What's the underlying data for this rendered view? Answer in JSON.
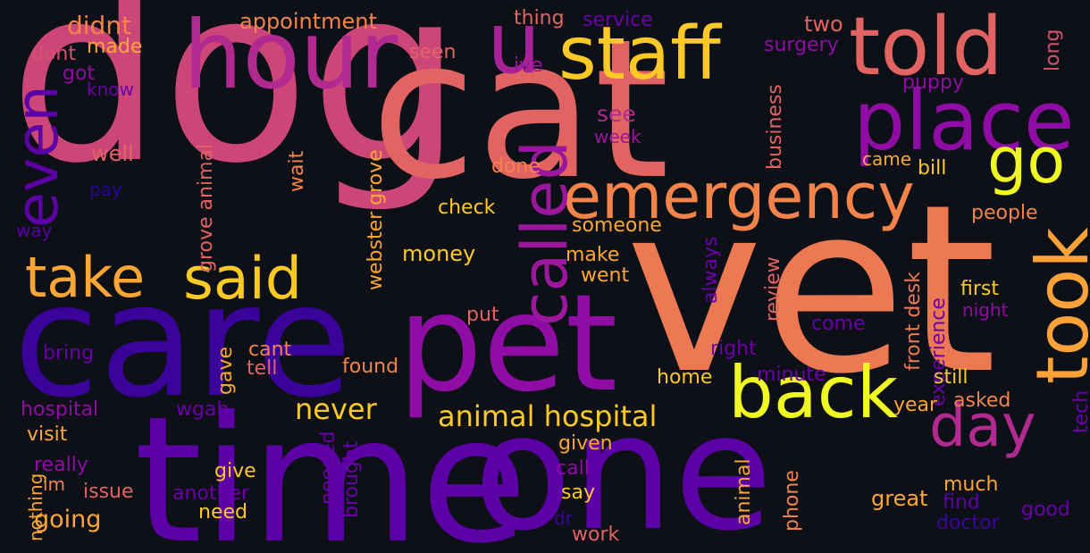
{
  "background": "#0d1117",
  "colormap": "plasma",
  "words": [
    {
      "text": "dog",
      "color": "#cc4778"
    },
    {
      "text": "vet",
      "color": "#ed7953"
    },
    {
      "text": "cat",
      "color": "#e16462"
    },
    {
      "text": "care",
      "color": "#3a049a"
    },
    {
      "text": "time",
      "color": "#5c01a6"
    },
    {
      "text": "one",
      "color": "#5c01a6"
    },
    {
      "text": "pet",
      "color": "#8f0da4"
    },
    {
      "text": "hour",
      "color": "#b12a90"
    },
    {
      "text": "u",
      "color": "#a72197"
    },
    {
      "text": "staff",
      "color": "#fdc926"
    },
    {
      "text": "told",
      "color": "#e16462"
    },
    {
      "text": "place",
      "color": "#8f0da4"
    },
    {
      "text": "go",
      "color": "#f0f921"
    },
    {
      "text": "emergency",
      "color": "#f2844b"
    },
    {
      "text": "called",
      "color": "#9c179e"
    },
    {
      "text": "took",
      "color": "#fba238"
    },
    {
      "text": "back",
      "color": "#f0f921"
    },
    {
      "text": "day",
      "color": "#b12a90"
    },
    {
      "text": "even",
      "color": "#5c01a6"
    },
    {
      "text": "take",
      "color": "#fca636"
    },
    {
      "text": "said",
      "color": "#fdc926"
    },
    {
      "text": "animal hospital",
      "color": "#fdc926"
    },
    {
      "text": "never",
      "color": "#fdc926"
    },
    {
      "text": "didnt",
      "color": "#f2844b"
    },
    {
      "text": "appointment",
      "color": "#f2844b"
    },
    {
      "text": "thing",
      "color": "#e16462"
    },
    {
      "text": "service",
      "color": "#6a00a8"
    },
    {
      "text": "two",
      "color": "#e16462"
    },
    {
      "text": "surgery",
      "color": "#8f0da4"
    },
    {
      "text": "long",
      "color": "#d5536f"
    },
    {
      "text": "dont",
      "color": "#d5536f"
    },
    {
      "text": "made",
      "color": "#fca636"
    },
    {
      "text": "got",
      "color": "#8f0da4"
    },
    {
      "text": "know",
      "color": "#6a00a8"
    },
    {
      "text": "seen",
      "color": "#e16462"
    },
    {
      "text": "ive",
      "color": "#9c179e"
    },
    {
      "text": "puppy",
      "color": "#8f0da4"
    },
    {
      "text": "see",
      "color": "#b12a90"
    },
    {
      "text": "week",
      "color": "#9c179e"
    },
    {
      "text": "well",
      "color": "#e16462"
    },
    {
      "text": "pay",
      "color": "#2a0593"
    },
    {
      "text": "way",
      "color": "#5c01a6"
    },
    {
      "text": "grove animal",
      "color": "#e16462"
    },
    {
      "text": "wait",
      "color": "#f2844b"
    },
    {
      "text": "webster grove",
      "color": "#fca636"
    },
    {
      "text": "done",
      "color": "#f2844b"
    },
    {
      "text": "check",
      "color": "#fdc926"
    },
    {
      "text": "money",
      "color": "#fdc926"
    },
    {
      "text": "business",
      "color": "#e16462"
    },
    {
      "text": "came",
      "color": "#fca636"
    },
    {
      "text": "bill",
      "color": "#fdc926"
    },
    {
      "text": "people",
      "color": "#f2844b"
    },
    {
      "text": "someone",
      "color": "#fca636"
    },
    {
      "text": "make",
      "color": "#fca636"
    },
    {
      "text": "went",
      "color": "#fca636"
    },
    {
      "text": "always",
      "color": "#6a00a8"
    },
    {
      "text": "review",
      "color": "#e16462"
    },
    {
      "text": "front desk",
      "color": "#ed7953"
    },
    {
      "text": "first",
      "color": "#fdc926"
    },
    {
      "text": "night",
      "color": "#8f0da4"
    },
    {
      "text": "put",
      "color": "#e16462"
    },
    {
      "text": "come",
      "color": "#6a00a8"
    },
    {
      "text": "experience",
      "color": "#6a00a8"
    },
    {
      "text": "bring",
      "color": "#6a00a8"
    },
    {
      "text": "cant",
      "color": "#f2844b"
    },
    {
      "text": "tell",
      "color": "#e16462"
    },
    {
      "text": "gave",
      "color": "#fca636"
    },
    {
      "text": "found",
      "color": "#f2844b"
    },
    {
      "text": "right",
      "color": "#6a00a8"
    },
    {
      "text": "minute",
      "color": "#6a00a8"
    },
    {
      "text": "still",
      "color": "#fdc926"
    },
    {
      "text": "tech",
      "color": "#6a00a8"
    },
    {
      "text": "home",
      "color": "#fdc926"
    },
    {
      "text": "asked",
      "color": "#f2844b"
    },
    {
      "text": "year",
      "color": "#fca636"
    },
    {
      "text": "hospital",
      "color": "#8f0da4"
    },
    {
      "text": "wgah",
      "color": "#6a00a8"
    },
    {
      "text": "visit",
      "color": "#fca636"
    },
    {
      "text": "given",
      "color": "#fca636"
    },
    {
      "text": "really",
      "color": "#8f0da4"
    },
    {
      "text": "im",
      "color": "#f2844b"
    },
    {
      "text": "issue",
      "color": "#e16462"
    },
    {
      "text": "nothing",
      "color": "#fca636"
    },
    {
      "text": "give",
      "color": "#fdc926"
    },
    {
      "text": "another",
      "color": "#6a00a8"
    },
    {
      "text": "needed",
      "color": "#6a00a8"
    },
    {
      "text": "brought",
      "color": "#6a00a8"
    },
    {
      "text": "call",
      "color": "#8f0da4"
    },
    {
      "text": "say",
      "color": "#fdc926"
    },
    {
      "text": "animal",
      "color": "#fca636"
    },
    {
      "text": "phone",
      "color": "#f2844b"
    },
    {
      "text": "great",
      "color": "#fca636"
    },
    {
      "text": "much",
      "color": "#fca636"
    },
    {
      "text": "find",
      "color": "#5c01a6"
    },
    {
      "text": "good",
      "color": "#6a00a8"
    },
    {
      "text": "doctor",
      "color": "#3a049a"
    },
    {
      "text": "going",
      "color": "#fca636"
    },
    {
      "text": "need",
      "color": "#fdc926"
    },
    {
      "text": "dr",
      "color": "#3a049a"
    },
    {
      "text": "work",
      "color": "#e16462"
    }
  ]
}
